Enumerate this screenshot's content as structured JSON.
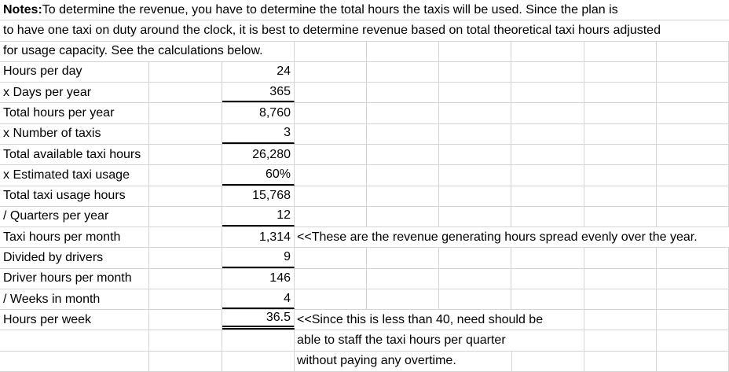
{
  "sheet": {
    "notes": {
      "label_bold": "Notes:",
      "line1_rest": " To determine the revenue, you have to determine the total hours the taxis will be used. Since the plan is",
      "line2": "to have one taxi on duty around the clock, it is best to determine revenue based on total theoretical taxi hours adjusted",
      "line3": "for usage capacity. See the calculations below."
    },
    "rows": [
      {
        "label": "Hours per day",
        "value": "24"
      },
      {
        "label": "x Days per year",
        "value": "365"
      },
      {
        "label": "Total hours per year",
        "value": "8,760"
      },
      {
        "label": "x Number of taxis",
        "value": "3"
      },
      {
        "label": "Total available taxi hours",
        "value": "26,280"
      },
      {
        "label": "x Estimated taxi usage",
        "value": "60%"
      },
      {
        "label": "Total taxi usage hours",
        "value": "15,768"
      },
      {
        "label": "/ Quarters per year",
        "value": "12"
      },
      {
        "label": "Taxi hours per month",
        "value": "1,314",
        "annotation": "<<These are the revenue generating hours spread evenly over the year."
      },
      {
        "label": "Divided by drivers",
        "value": "9"
      },
      {
        "label": "Driver hours per month",
        "value": "146"
      },
      {
        "label": "/ Weeks in month",
        "value": "4"
      },
      {
        "label": "Hours per week",
        "value": "36.5",
        "annotation": "<<Since this is less than 40, need should be"
      }
    ],
    "footer_annotations": [
      "able to staff the taxi hours per quarter",
      "without paying any overtime."
    ],
    "colors": {
      "gridline": "#d4d4d4",
      "text": "#000000",
      "background": "#ffffff",
      "accounting_border": "#000000"
    }
  }
}
